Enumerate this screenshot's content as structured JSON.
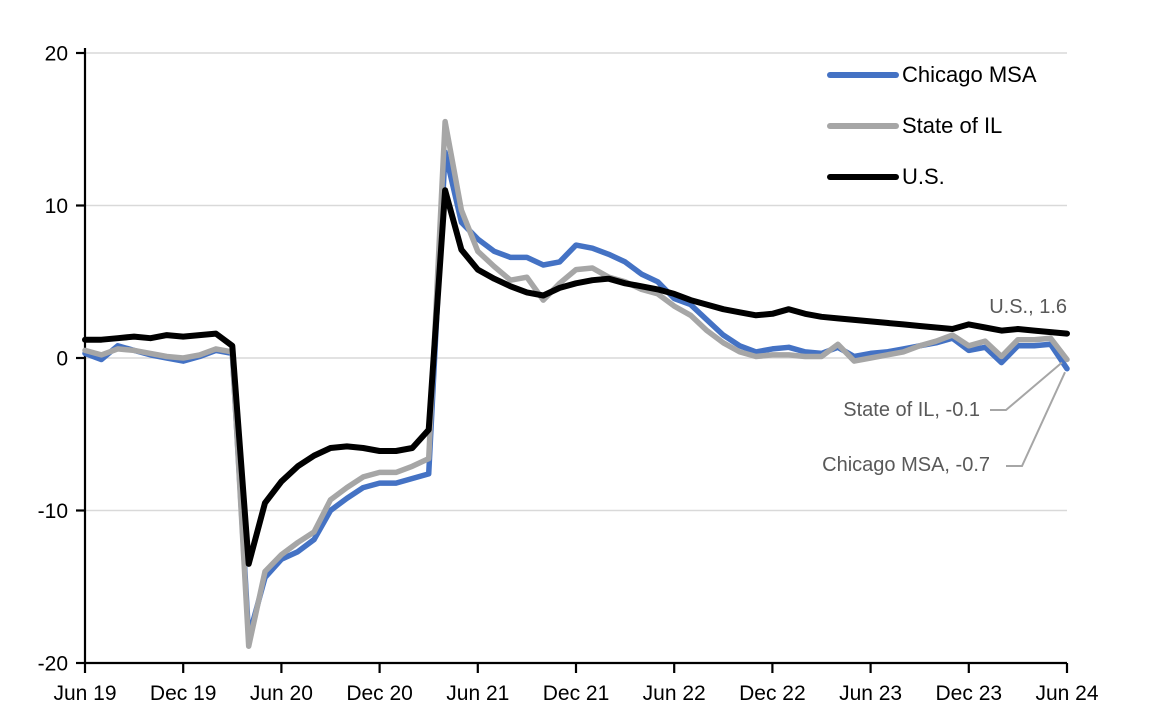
{
  "figure": {
    "background": "#FFFFFF",
    "axis_color": "#000000",
    "grid_color": "#D9D9D9",
    "leader_color": "#A6A6A6",
    "annotation_text_color": "#595959"
  },
  "chart_data": {
    "type": "line",
    "title": "",
    "xlabel": "",
    "ylabel": "",
    "ylim": [
      -20,
      20
    ],
    "y_ticks": [
      20,
      10,
      0,
      -10,
      -20
    ],
    "grid_values": [
      20,
      10,
      0,
      -10
    ],
    "grid_on": true,
    "legend_position": "top-right-inside",
    "x_labels": [
      "Jun 19",
      "Jul 19",
      "Aug 19",
      "Sep 19",
      "Oct 19",
      "Nov 19",
      "Dec 19",
      "Jan 20",
      "Feb 20",
      "Mar 20",
      "Apr 20",
      "May 20",
      "Jun 20",
      "Jul 20",
      "Aug 20",
      "Sep 20",
      "Oct 20",
      "Nov 20",
      "Dec 20",
      "Jan 21",
      "Feb 21",
      "Mar 21",
      "Apr 21",
      "May 21",
      "Jun 21",
      "Jul 21",
      "Aug 21",
      "Sep 21",
      "Oct 21",
      "Nov 21",
      "Dec 21",
      "Jan 22",
      "Feb 22",
      "Mar 22",
      "Apr 22",
      "May 22",
      "Jun 22",
      "Jul 22",
      "Aug 22",
      "Sep 22",
      "Oct 22",
      "Nov 22",
      "Dec 22",
      "Jan 23",
      "Feb 23",
      "Mar 23",
      "Apr 23",
      "May 23",
      "Jun 23",
      "Jul 23",
      "Aug 23",
      "Sep 23",
      "Oct 23",
      "Nov 23",
      "Dec 23",
      "Jan 24",
      "Feb 24",
      "Mar 24",
      "Apr 24",
      "May 24",
      "Jun 24"
    ],
    "x_ticks": [
      {
        "index": 0,
        "label": "Jun 19"
      },
      {
        "index": 6,
        "label": "Dec 19"
      },
      {
        "index": 12,
        "label": "Jun 20"
      },
      {
        "index": 18,
        "label": "Dec 20"
      },
      {
        "index": 24,
        "label": "Jun 21"
      },
      {
        "index": 30,
        "label": "Dec 21"
      },
      {
        "index": 36,
        "label": "Jun 22"
      },
      {
        "index": 42,
        "label": "Dec 22"
      },
      {
        "index": 48,
        "label": "Jun 23"
      },
      {
        "index": 54,
        "label": "Dec 23"
      },
      {
        "index": 60,
        "label": "Jun 24"
      }
    ],
    "series": [
      {
        "name": "Chicago MSA",
        "color": "#4472C4",
        "width": 5.5,
        "values": [
          0.3,
          -0.1,
          0.8,
          0.5,
          0.2,
          0.0,
          -0.2,
          0.1,
          0.5,
          0.3,
          -18.3,
          -14.4,
          -13.2,
          -12.7,
          -11.9,
          -10.0,
          -9.2,
          -8.5,
          -8.2,
          -8.2,
          -7.9,
          -7.6,
          13.5,
          8.9,
          7.8,
          7.0,
          6.6,
          6.6,
          6.1,
          6.3,
          7.4,
          7.2,
          6.8,
          6.3,
          5.5,
          5.0,
          3.9,
          3.5,
          2.5,
          1.5,
          0.8,
          0.4,
          0.6,
          0.7,
          0.4,
          0.3,
          0.7,
          0.1,
          0.3,
          0.4,
          0.6,
          0.8,
          1.0,
          1.3,
          0.5,
          0.7,
          -0.3,
          0.8,
          0.8,
          0.9,
          -0.7
        ]
      },
      {
        "name": "State of IL",
        "color": "#A6A6A6",
        "width": 5.5,
        "values": [
          0.5,
          0.2,
          0.6,
          0.5,
          0.3,
          0.1,
          0.0,
          0.2,
          0.6,
          0.4,
          -18.9,
          -14.0,
          -12.9,
          -12.1,
          -11.4,
          -9.3,
          -8.5,
          -7.8,
          -7.5,
          -7.5,
          -7.1,
          -6.6,
          15.5,
          9.7,
          7.0,
          6.0,
          5.1,
          5.3,
          3.8,
          4.9,
          5.8,
          5.9,
          5.3,
          5.0,
          4.5,
          4.2,
          3.4,
          2.8,
          1.8,
          1.0,
          0.4,
          0.1,
          0.2,
          0.2,
          0.1,
          0.1,
          0.9,
          -0.2,
          0.0,
          0.2,
          0.4,
          0.8,
          1.1,
          1.5,
          0.8,
          1.1,
          0.1,
          1.2,
          1.2,
          1.3,
          -0.1
        ]
      },
      {
        "name": "U.S.",
        "color": "#000000",
        "width": 6,
        "values": [
          1.2,
          1.2,
          1.3,
          1.4,
          1.3,
          1.5,
          1.4,
          1.5,
          1.6,
          0.8,
          -13.5,
          -9.5,
          -8.1,
          -7.1,
          -6.4,
          -5.9,
          -5.8,
          -5.9,
          -6.1,
          -6.1,
          -5.9,
          -4.7,
          11.0,
          7.1,
          5.8,
          5.2,
          4.7,
          4.3,
          4.1,
          4.6,
          4.9,
          5.1,
          5.2,
          4.9,
          4.7,
          4.5,
          4.2,
          3.8,
          3.5,
          3.2,
          3.0,
          2.8,
          2.9,
          3.2,
          2.9,
          2.7,
          2.6,
          2.5,
          2.4,
          2.3,
          2.2,
          2.1,
          2.0,
          1.9,
          2.2,
          2.0,
          1.8,
          1.9,
          1.8,
          1.7,
          1.6
        ]
      }
    ],
    "annotations": [
      {
        "text": "U.S., 1.6",
        "series": "U.S.",
        "value": 1.6
      },
      {
        "text": "State of IL, -0.1",
        "series": "State of IL",
        "value": -0.1
      },
      {
        "text": "Chicago MSA, -0.7",
        "series": "Chicago MSA",
        "value": -0.7
      }
    ]
  }
}
